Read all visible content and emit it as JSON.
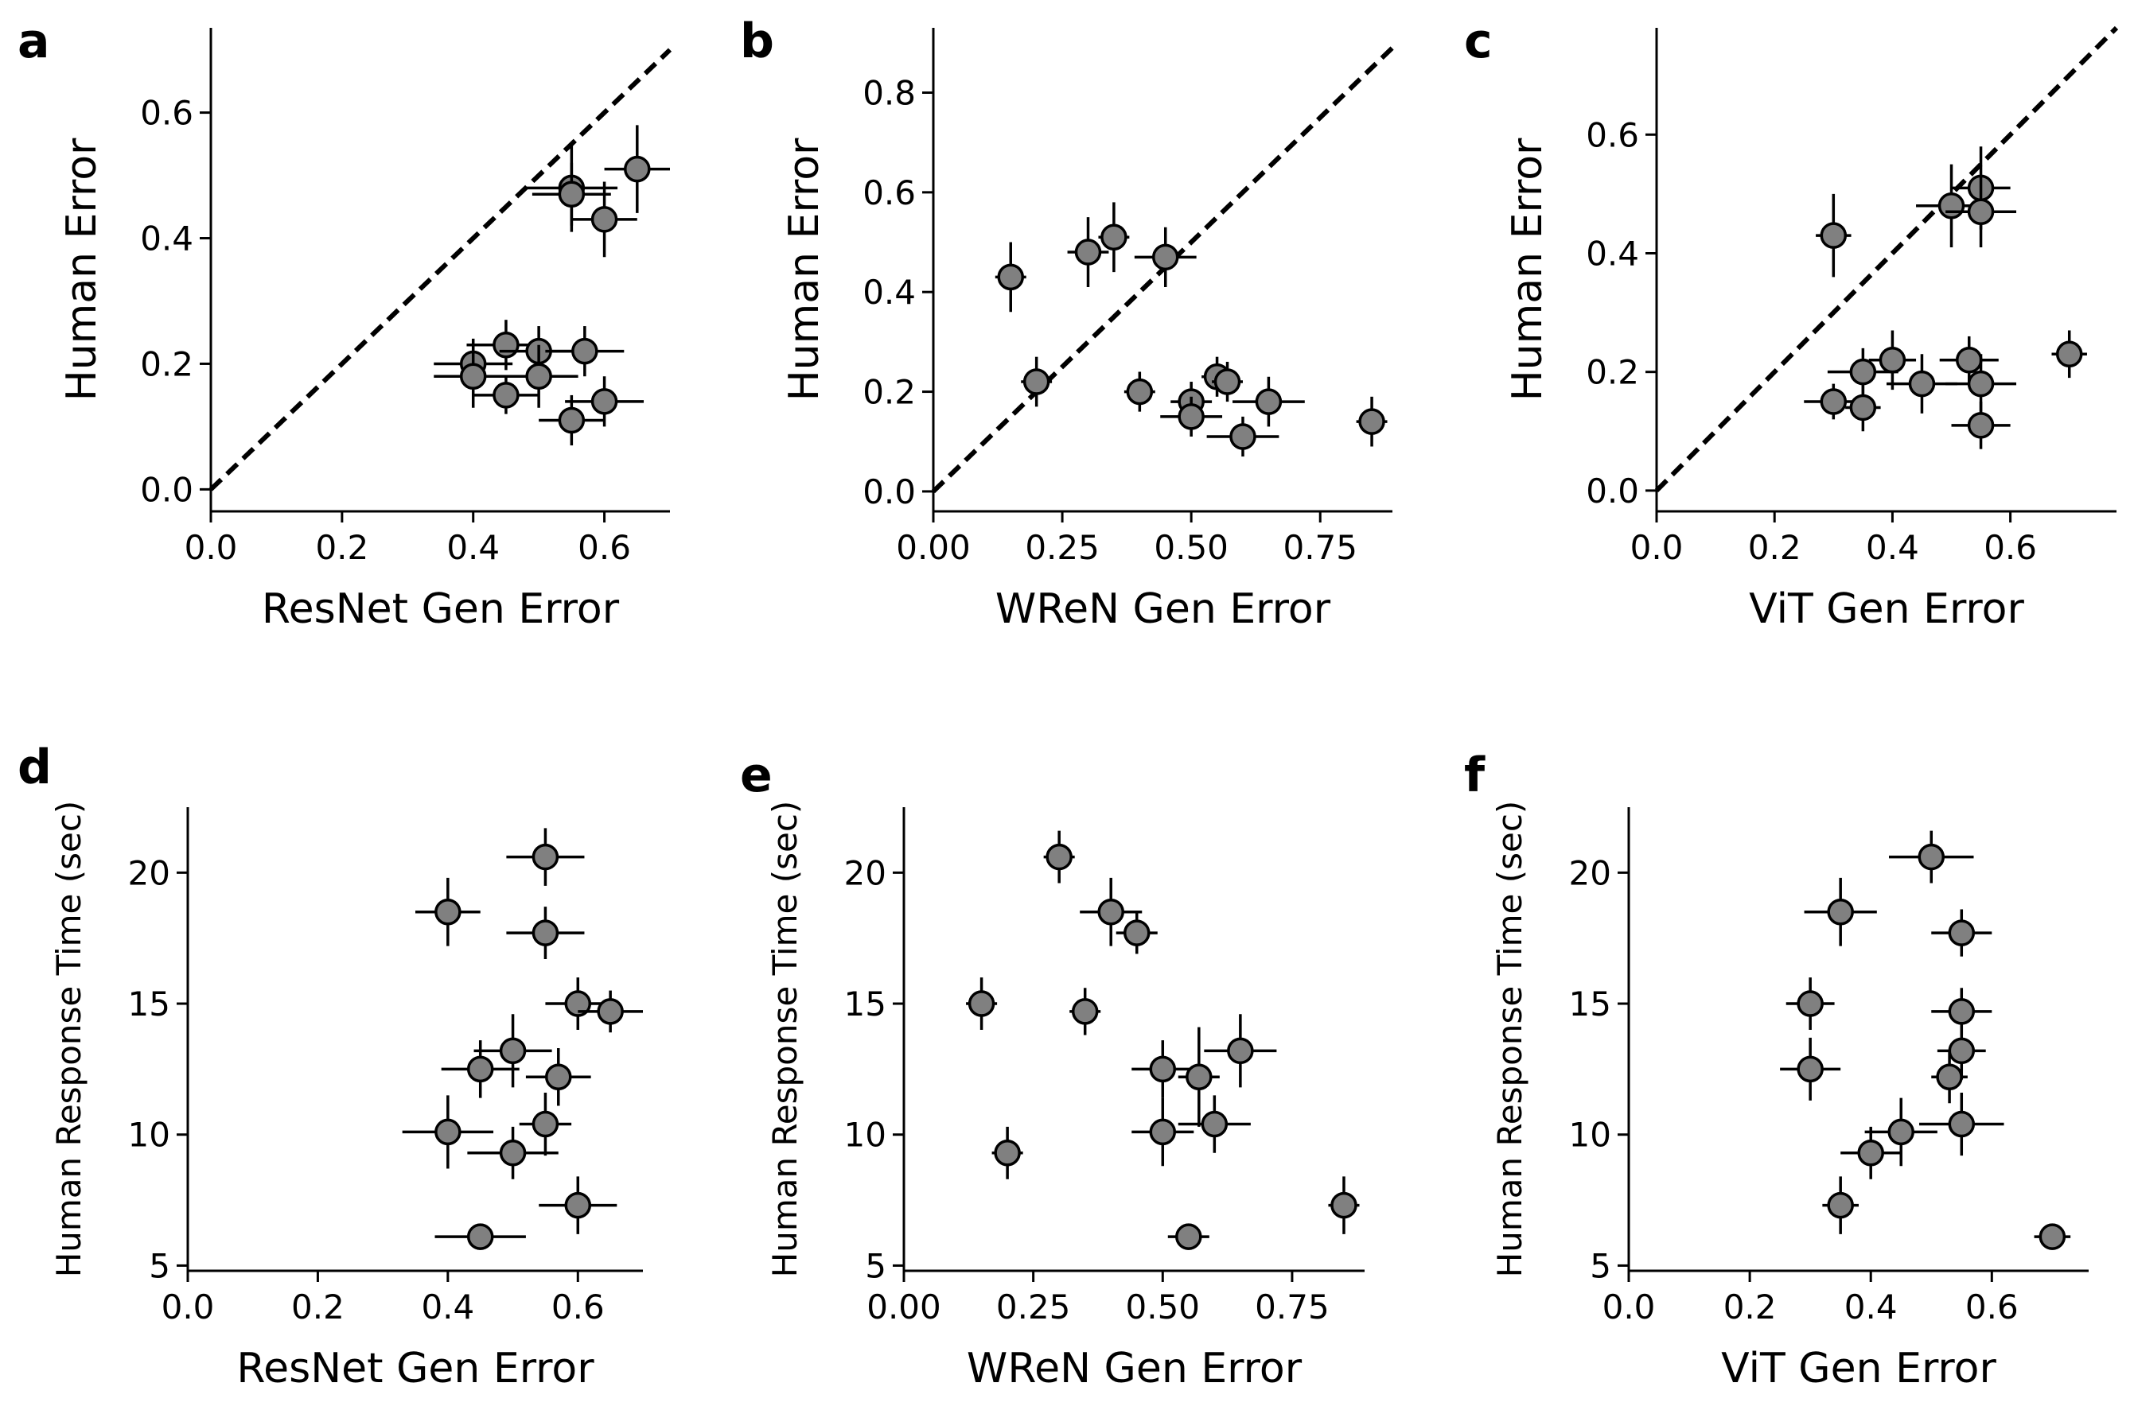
{
  "chart_data": [
    {
      "panel": "a",
      "type": "scatter",
      "model": "ResNet",
      "xlabel": "ResNet Gen Error",
      "ylabel": "Human Error",
      "xlim": [
        0,
        0.7
      ],
      "ylim": [
        -0.035,
        0.735
      ],
      "xticks": [
        0.0,
        0.2,
        0.4,
        0.6
      ],
      "xtick_labels": [
        "0.0",
        "0.2",
        "0.4",
        "0.6"
      ],
      "yticks": [
        0.0,
        0.2,
        0.4,
        0.6
      ],
      "ytick_labels": [
        "0.0",
        "0.2",
        "0.4",
        "0.6"
      ],
      "identity_line": true,
      "points": [
        {
          "x": 0.65,
          "y": 0.51,
          "xerr": 0.05,
          "yerr": 0.07
        },
        {
          "x": 0.55,
          "y": 0.48,
          "xerr": 0.07,
          "yerr": 0.07
        },
        {
          "x": 0.55,
          "y": 0.47,
          "xerr": 0.06,
          "yerr": 0.05
        },
        {
          "x": 0.6,
          "y": 0.43,
          "xerr": 0.05,
          "yerr": 0.06
        },
        {
          "x": 0.45,
          "y": 0.23,
          "xerr": 0.06,
          "yerr": 0.04
        },
        {
          "x": 0.5,
          "y": 0.22,
          "xerr": 0.06,
          "yerr": 0.04
        },
        {
          "x": 0.57,
          "y": 0.22,
          "xerr": 0.06,
          "yerr": 0.04
        },
        {
          "x": 0.4,
          "y": 0.2,
          "xerr": 0.06,
          "yerr": 0.04
        },
        {
          "x": 0.4,
          "y": 0.18,
          "xerr": 0.06,
          "yerr": 0.05
        },
        {
          "x": 0.5,
          "y": 0.18,
          "xerr": 0.06,
          "yerr": 0.05
        },
        {
          "x": 0.45,
          "y": 0.15,
          "xerr": 0.05,
          "yerr": 0.03
        },
        {
          "x": 0.6,
          "y": 0.14,
          "xerr": 0.06,
          "yerr": 0.04
        },
        {
          "x": 0.55,
          "y": 0.11,
          "xerr": 0.05,
          "yerr": 0.04
        }
      ]
    },
    {
      "panel": "b",
      "type": "scatter",
      "model": "WReN",
      "xlabel": "WReN Gen Error",
      "ylabel": "Human Error",
      "xlim": [
        0,
        0.89
      ],
      "ylim": [
        -0.04,
        0.93
      ],
      "xticks": [
        0.0,
        0.25,
        0.5,
        0.75
      ],
      "xtick_labels": [
        "0.00",
        "0.25",
        "0.50",
        "0.75"
      ],
      "yticks": [
        0.0,
        0.2,
        0.4,
        0.6,
        0.8
      ],
      "ytick_labels": [
        "0.0",
        "0.2",
        "0.4",
        "0.6",
        "0.8"
      ],
      "identity_line": true,
      "points": [
        {
          "x": 0.15,
          "y": 0.43,
          "xerr": 0.03,
          "yerr": 0.07
        },
        {
          "x": 0.3,
          "y": 0.48,
          "xerr": 0.04,
          "yerr": 0.07
        },
        {
          "x": 0.35,
          "y": 0.51,
          "xerr": 0.03,
          "yerr": 0.07
        },
        {
          "x": 0.45,
          "y": 0.47,
          "xerr": 0.06,
          "yerr": 0.06
        },
        {
          "x": 0.2,
          "y": 0.22,
          "xerr": 0.03,
          "yerr": 0.05
        },
        {
          "x": 0.4,
          "y": 0.2,
          "xerr": 0.03,
          "yerr": 0.04
        },
        {
          "x": 0.5,
          "y": 0.18,
          "xerr": 0.04,
          "yerr": 0.04
        },
        {
          "x": 0.5,
          "y": 0.15,
          "xerr": 0.06,
          "yerr": 0.04
        },
        {
          "x": 0.55,
          "y": 0.23,
          "xerr": 0.03,
          "yerr": 0.04
        },
        {
          "x": 0.57,
          "y": 0.22,
          "xerr": 0.03,
          "yerr": 0.04
        },
        {
          "x": 0.65,
          "y": 0.18,
          "xerr": 0.07,
          "yerr": 0.05
        },
        {
          "x": 0.6,
          "y": 0.11,
          "xerr": 0.07,
          "yerr": 0.04
        },
        {
          "x": 0.85,
          "y": 0.14,
          "xerr": 0.03,
          "yerr": 0.05
        }
      ]
    },
    {
      "panel": "c",
      "type": "scatter",
      "model": "ViT",
      "xlabel": "ViT Gen Error",
      "ylabel": "Human Error",
      "xlim": [
        0,
        0.78
      ],
      "ylim": [
        -0.035,
        0.78
      ],
      "xticks": [
        0.0,
        0.2,
        0.4,
        0.6
      ],
      "xtick_labels": [
        "0.0",
        "0.2",
        "0.4",
        "0.6"
      ],
      "yticks": [
        0.0,
        0.2,
        0.4,
        0.6
      ],
      "ytick_labels": [
        "0.0",
        "0.2",
        "0.4",
        "0.6"
      ],
      "identity_line": true,
      "points": [
        {
          "x": 0.3,
          "y": 0.43,
          "xerr": 0.03,
          "yerr": 0.07
        },
        {
          "x": 0.5,
          "y": 0.48,
          "xerr": 0.06,
          "yerr": 0.07
        },
        {
          "x": 0.55,
          "y": 0.51,
          "xerr": 0.05,
          "yerr": 0.07
        },
        {
          "x": 0.55,
          "y": 0.47,
          "xerr": 0.06,
          "yerr": 0.06
        },
        {
          "x": 0.7,
          "y": 0.23,
          "xerr": 0.03,
          "yerr": 0.04
        },
        {
          "x": 0.4,
          "y": 0.22,
          "xerr": 0.04,
          "yerr": 0.05
        },
        {
          "x": 0.53,
          "y": 0.22,
          "xerr": 0.05,
          "yerr": 0.04
        },
        {
          "x": 0.35,
          "y": 0.2,
          "xerr": 0.06,
          "yerr": 0.04
        },
        {
          "x": 0.45,
          "y": 0.18,
          "xerr": 0.06,
          "yerr": 0.05
        },
        {
          "x": 0.55,
          "y": 0.18,
          "xerr": 0.06,
          "yerr": 0.05
        },
        {
          "x": 0.3,
          "y": 0.15,
          "xerr": 0.05,
          "yerr": 0.03
        },
        {
          "x": 0.35,
          "y": 0.14,
          "xerr": 0.03,
          "yerr": 0.04
        },
        {
          "x": 0.55,
          "y": 0.11,
          "xerr": 0.05,
          "yerr": 0.04
        }
      ]
    },
    {
      "panel": "d",
      "type": "scatter",
      "model": "ResNet",
      "xlabel": "ResNet Gen Error",
      "ylabel": "Human Response Time (sec)",
      "xlim": [
        0,
        0.7
      ],
      "ylim": [
        4.8,
        22.5
      ],
      "xticks": [
        0.0,
        0.2,
        0.4,
        0.6
      ],
      "xtick_labels": [
        "0.0",
        "0.2",
        "0.4",
        "0.6"
      ],
      "yticks": [
        5,
        10,
        15,
        20
      ],
      "ytick_labels": [
        "5",
        "10",
        "15",
        "20"
      ],
      "identity_line": false,
      "points": [
        {
          "x": 0.55,
          "y": 20.6,
          "xerr": 0.06,
          "yerr": 1.1
        },
        {
          "x": 0.4,
          "y": 18.5,
          "xerr": 0.05,
          "yerr": 1.3
        },
        {
          "x": 0.55,
          "y": 17.7,
          "xerr": 0.06,
          "yerr": 1.0
        },
        {
          "x": 0.6,
          "y": 15.0,
          "xerr": 0.05,
          "yerr": 1.0
        },
        {
          "x": 0.65,
          "y": 14.7,
          "xerr": 0.05,
          "yerr": 0.8
        },
        {
          "x": 0.5,
          "y": 13.2,
          "xerr": 0.06,
          "yerr": 1.4
        },
        {
          "x": 0.45,
          "y": 12.5,
          "xerr": 0.06,
          "yerr": 1.1
        },
        {
          "x": 0.57,
          "y": 12.2,
          "xerr": 0.05,
          "yerr": 1.1
        },
        {
          "x": 0.55,
          "y": 10.4,
          "xerr": 0.04,
          "yerr": 1.2
        },
        {
          "x": 0.4,
          "y": 10.1,
          "xerr": 0.07,
          "yerr": 1.4
        },
        {
          "x": 0.5,
          "y": 9.3,
          "xerr": 0.07,
          "yerr": 1.0
        },
        {
          "x": 0.6,
          "y": 7.3,
          "xerr": 0.06,
          "yerr": 1.1
        },
        {
          "x": 0.45,
          "y": 6.1,
          "xerr": 0.07,
          "yerr": 0.5
        }
      ]
    },
    {
      "panel": "e",
      "type": "scatter",
      "model": "WReN",
      "xlabel": "WReN Gen Error",
      "ylabel": "Human Response Time (sec)",
      "xlim": [
        0,
        0.89
      ],
      "ylim": [
        4.8,
        22.5
      ],
      "xticks": [
        0.0,
        0.25,
        0.5,
        0.75
      ],
      "xtick_labels": [
        "0.00",
        "0.25",
        "0.50",
        "0.75"
      ],
      "yticks": [
        5,
        10,
        15,
        20
      ],
      "ytick_labels": [
        "5",
        "10",
        "15",
        "20"
      ],
      "identity_line": false,
      "points": [
        {
          "x": 0.3,
          "y": 20.6,
          "xerr": 0.03,
          "yerr": 1.0
        },
        {
          "x": 0.4,
          "y": 18.5,
          "xerr": 0.06,
          "yerr": 1.3
        },
        {
          "x": 0.45,
          "y": 17.7,
          "xerr": 0.04,
          "yerr": 0.8
        },
        {
          "x": 0.15,
          "y": 15.0,
          "xerr": 0.03,
          "yerr": 1.0
        },
        {
          "x": 0.35,
          "y": 14.7,
          "xerr": 0.03,
          "yerr": 0.9
        },
        {
          "x": 0.65,
          "y": 13.2,
          "xerr": 0.07,
          "yerr": 1.4
        },
        {
          "x": 0.5,
          "y": 12.5,
          "xerr": 0.06,
          "yerr": 1.1
        },
        {
          "x": 0.57,
          "y": 12.2,
          "xerr": 0.04,
          "yerr": 1.9
        },
        {
          "x": 0.6,
          "y": 10.4,
          "xerr": 0.07,
          "yerr": 1.1
        },
        {
          "x": 0.5,
          "y": 10.1,
          "xerr": 0.06,
          "yerr": 1.3
        },
        {
          "x": 0.2,
          "y": 9.3,
          "xerr": 0.03,
          "yerr": 1.0
        },
        {
          "x": 0.85,
          "y": 7.3,
          "xerr": 0.03,
          "yerr": 1.1
        },
        {
          "x": 0.55,
          "y": 6.1,
          "xerr": 0.04,
          "yerr": 0.5
        }
      ]
    },
    {
      "panel": "f",
      "type": "scatter",
      "model": "ViT",
      "xlabel": "ViT Gen Error",
      "ylabel": "Human Response Time (sec)",
      "xlim": [
        0,
        0.76
      ],
      "ylim": [
        4.8,
        22.5
      ],
      "xticks": [
        0.0,
        0.2,
        0.4,
        0.6
      ],
      "xtick_labels": [
        "0.0",
        "0.2",
        "0.4",
        "0.6"
      ],
      "yticks": [
        5,
        10,
        15,
        20
      ],
      "ytick_labels": [
        "5",
        "10",
        "15",
        "20"
      ],
      "identity_line": false,
      "points": [
        {
          "x": 0.5,
          "y": 20.6,
          "xerr": 0.07,
          "yerr": 1.0
        },
        {
          "x": 0.35,
          "y": 18.5,
          "xerr": 0.06,
          "yerr": 1.3
        },
        {
          "x": 0.55,
          "y": 17.7,
          "xerr": 0.05,
          "yerr": 0.9
        },
        {
          "x": 0.3,
          "y": 15.0,
          "xerr": 0.04,
          "yerr": 1.0
        },
        {
          "x": 0.55,
          "y": 14.7,
          "xerr": 0.05,
          "yerr": 0.9
        },
        {
          "x": 0.55,
          "y": 13.2,
          "xerr": 0.04,
          "yerr": 1.1
        },
        {
          "x": 0.3,
          "y": 12.5,
          "xerr": 0.05,
          "yerr": 1.2
        },
        {
          "x": 0.53,
          "y": 12.2,
          "xerr": 0.03,
          "yerr": 1.0
        },
        {
          "x": 0.55,
          "y": 10.4,
          "xerr": 0.07,
          "yerr": 1.2
        },
        {
          "x": 0.45,
          "y": 10.1,
          "xerr": 0.06,
          "yerr": 1.3
        },
        {
          "x": 0.4,
          "y": 9.3,
          "xerr": 0.05,
          "yerr": 1.0
        },
        {
          "x": 0.35,
          "y": 7.3,
          "xerr": 0.03,
          "yerr": 1.1
        },
        {
          "x": 0.7,
          "y": 6.1,
          "xerr": 0.03,
          "yerr": 0.5
        }
      ]
    }
  ]
}
